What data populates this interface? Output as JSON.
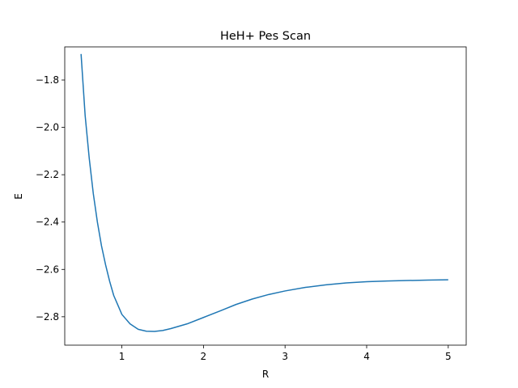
{
  "chart_data": {
    "type": "line",
    "title": "HeH+ Pes Scan",
    "xlabel": "R",
    "ylabel": "E",
    "xlim": [
      0.3,
      5.22
    ],
    "ylim": [
      -2.92,
      -1.66
    ],
    "xticks": [
      1,
      2,
      3,
      4,
      5
    ],
    "xtick_labels": [
      "1",
      "2",
      "3",
      "4",
      "5"
    ],
    "yticks": [
      -2.8,
      -2.6,
      -2.4,
      -2.2,
      -2.0,
      -1.8
    ],
    "ytick_labels": [
      "−2.8",
      "−2.6",
      "−2.4",
      "−2.2",
      "−2.0",
      "−1.8"
    ],
    "grid": false,
    "line_color": "#1f77b4",
    "series": [
      {
        "x": [
          0.5,
          0.55,
          0.6,
          0.65,
          0.7,
          0.75,
          0.8,
          0.85,
          0.9,
          0.95,
          1.0,
          1.1,
          1.2,
          1.3,
          1.4,
          1.5,
          1.6,
          1.8,
          2.0,
          2.2,
          2.4,
          2.6,
          2.8,
          3.0,
          3.25,
          3.5,
          3.75,
          4.0,
          4.25,
          4.5,
          4.75,
          5.0
        ],
        "y": [
          -1.69,
          -1.95,
          -2.13,
          -2.28,
          -2.4,
          -2.5,
          -2.58,
          -2.65,
          -2.71,
          -2.75,
          -2.79,
          -2.83,
          -2.853,
          -2.861,
          -2.862,
          -2.858,
          -2.85,
          -2.83,
          -2.803,
          -2.776,
          -2.748,
          -2.725,
          -2.706,
          -2.691,
          -2.676,
          -2.665,
          -2.657,
          -2.652,
          -2.649,
          -2.647,
          -2.645,
          -2.644
        ]
      }
    ]
  }
}
